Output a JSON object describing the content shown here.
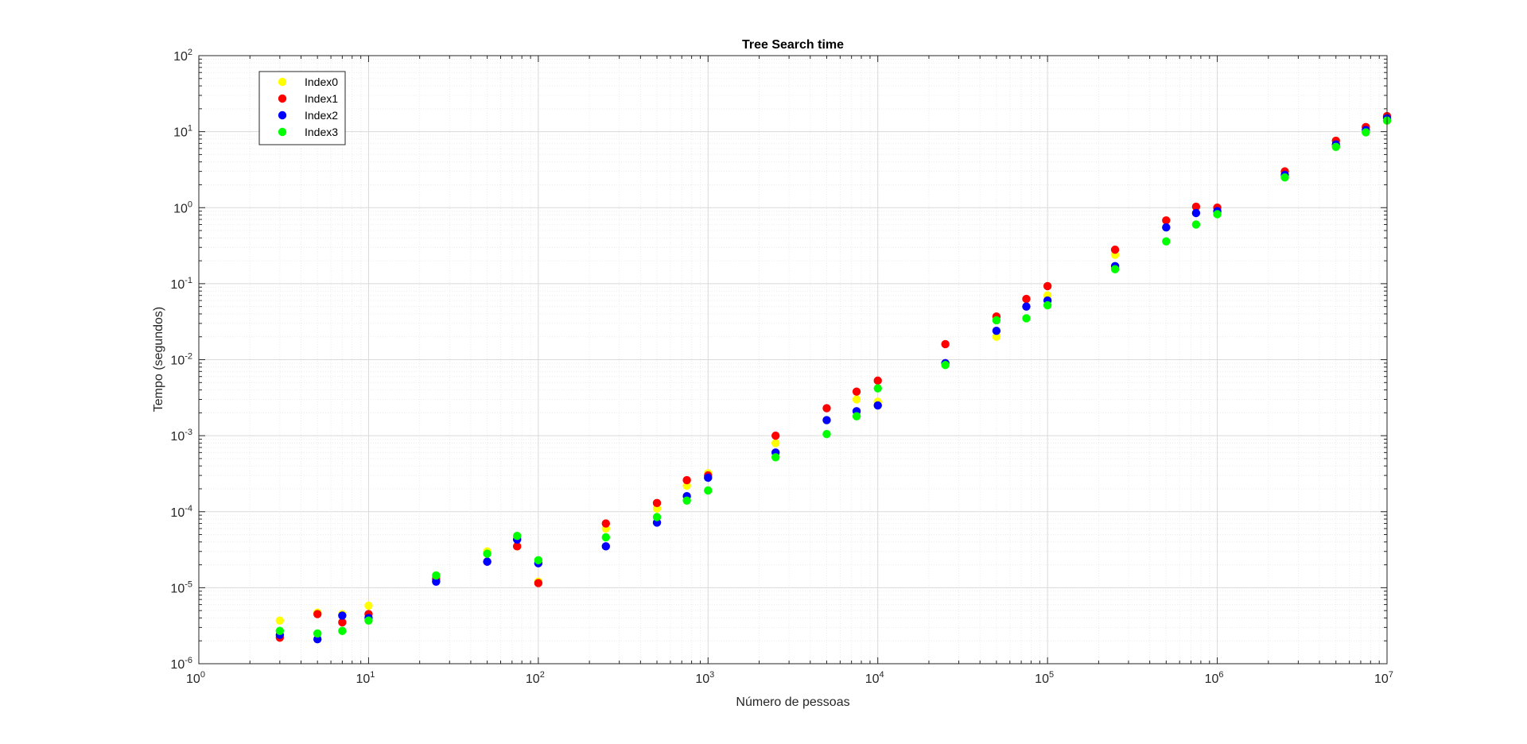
{
  "chart_data": {
    "type": "scatter",
    "title": "Tree Search time",
    "xlabel": "Número de pessoas",
    "ylabel": "Tempo (segundos)",
    "xscale": "log",
    "yscale": "log",
    "xlim": [
      1,
      10000000
    ],
    "ylim": [
      1e-06,
      100
    ],
    "grid": true,
    "legend_position": "top-left",
    "x_ticks": [
      {
        "base": "10",
        "exp": "0"
      },
      {
        "base": "10",
        "exp": "1"
      },
      {
        "base": "10",
        "exp": "2"
      },
      {
        "base": "10",
        "exp": "3"
      },
      {
        "base": "10",
        "exp": "4"
      },
      {
        "base": "10",
        "exp": "5"
      },
      {
        "base": "10",
        "exp": "6"
      },
      {
        "base": "10",
        "exp": "7"
      }
    ],
    "y_ticks": [
      {
        "base": "10",
        "exp": "-6"
      },
      {
        "base": "10",
        "exp": "-5"
      },
      {
        "base": "10",
        "exp": "-4"
      },
      {
        "base": "10",
        "exp": "-3"
      },
      {
        "base": "10",
        "exp": "-2"
      },
      {
        "base": "10",
        "exp": "-1"
      },
      {
        "base": "10",
        "exp": "0"
      },
      {
        "base": "10",
        "exp": "1"
      },
      {
        "base": "10",
        "exp": "2"
      }
    ],
    "x": [
      3,
      5,
      7,
      10,
      25,
      50,
      75,
      100,
      250,
      500,
      750,
      1000,
      2500,
      5000,
      7500,
      10000,
      25000,
      50000,
      75000,
      100000,
      250000,
      500000,
      750000,
      1000000,
      2500000,
      5000000,
      7500000,
      10000000
    ],
    "series": [
      {
        "name": "Index0",
        "color": "#ffff00",
        "values": [
          3.7e-06,
          4.7e-06,
          4.5e-06,
          5.8e-06,
          1.4e-05,
          3e-05,
          3.5e-05,
          1.2e-05,
          6e-05,
          0.00011,
          0.00022,
          0.00032,
          0.0008,
          0.0016,
          0.003,
          0.0028,
          0.009,
          0.02,
          0.05,
          0.07,
          0.24,
          0.55,
          0.85,
          0.9,
          2.6,
          6.6,
          10.0,
          14.0
        ]
      },
      {
        "name": "Index1",
        "color": "#ff0000",
        "values": [
          2.2e-06,
          4.5e-06,
          3.5e-06,
          4.5e-06,
          1.3e-05,
          2.2e-05,
          3.5e-05,
          1.15e-05,
          7e-05,
          0.00013,
          0.00026,
          0.0003,
          0.001,
          0.0023,
          0.0038,
          0.0053,
          0.016,
          0.037,
          0.063,
          0.093,
          0.28,
          0.68,
          1.03,
          1.0,
          3.0,
          7.6,
          11.5,
          16.0
        ]
      },
      {
        "name": "Index2",
        "color": "#0000ff",
        "values": [
          2.4e-06,
          2.1e-06,
          4.3e-06,
          4e-06,
          1.2e-05,
          2.2e-05,
          4.3e-05,
          2.1e-05,
          3.5e-05,
          7.2e-05,
          0.00016,
          0.00028,
          0.0006,
          0.0016,
          0.0021,
          0.0025,
          0.009,
          0.024,
          0.05,
          0.06,
          0.17,
          0.55,
          0.85,
          0.9,
          2.7,
          6.8,
          10.5,
          15.0
        ]
      },
      {
        "name": "Index3",
        "color": "#00ff00",
        "values": [
          2.7e-06,
          2.5e-06,
          2.7e-06,
          3.7e-06,
          1.45e-05,
          2.8e-05,
          4.8e-05,
          2.3e-05,
          4.6e-05,
          8.5e-05,
          0.00014,
          0.00019,
          0.00052,
          0.00105,
          0.0018,
          0.0042,
          0.0085,
          0.033,
          0.035,
          0.052,
          0.155,
          0.36,
          0.6,
          0.82,
          2.5,
          6.3,
          9.8,
          14.0
        ]
      }
    ]
  }
}
